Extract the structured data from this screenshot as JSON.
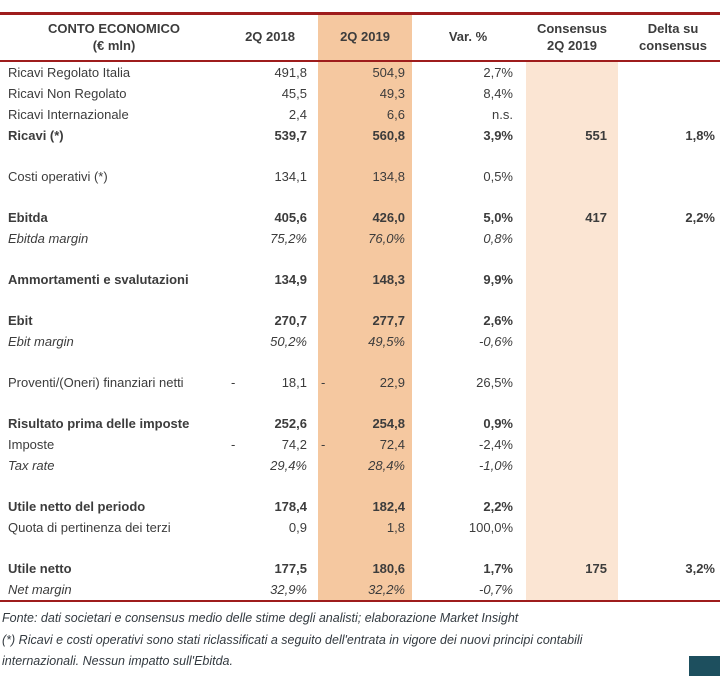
{
  "colors": {
    "line_red": "#9e1c1c",
    "col_2019_bg": "#f5c8a0",
    "col_consensus_bg": "#fbe5d3",
    "text": "#3c3c3c",
    "footer_text": "#333a40",
    "corner_box": "#1d4f5e"
  },
  "table": {
    "negative_sign": "-",
    "header": {
      "label": "CONTO ECONOMICO\n(€ mln)",
      "col_2018": "2Q 2018",
      "col_2019": "2Q 2019",
      "col_var": "Var. %",
      "col_consensus": "Consensus\n2Q 2019",
      "col_delta": "Delta su\nconsensus"
    },
    "rows": [
      {
        "label": "Ricavi Regolato Italia",
        "v2018": "491,8",
        "v2019": "504,9",
        "var": "2,7%"
      },
      {
        "label": "Ricavi Non Regolato",
        "v2018": "45,5",
        "v2019": "49,3",
        "var": "8,4%"
      },
      {
        "label": "Ricavi Internazionale",
        "v2018": "2,4",
        "v2019": "6,6",
        "var": "n.s."
      },
      {
        "label": "Ricavi (*)",
        "style": "bold",
        "v2018": "539,7",
        "v2019": "560,8",
        "var": "3,9%",
        "consensus": "551",
        "delta": "1,8%"
      },
      {
        "spacer": true
      },
      {
        "label": "Costi operativi (*)",
        "v2018": "134,1",
        "v2019": "134,8",
        "var": "0,5%"
      },
      {
        "spacer": true
      },
      {
        "label": "Ebitda",
        "style": "bold",
        "v2018": "405,6",
        "v2019": "426,0",
        "var": "5,0%",
        "consensus": "417",
        "delta": "2,2%"
      },
      {
        "label": "Ebitda margin",
        "style": "italic",
        "v2018": "75,2%",
        "v2019": "76,0%",
        "var": "0,8%"
      },
      {
        "spacer": true
      },
      {
        "label": "Ammortamenti e svalutazioni",
        "style": "bold",
        "v2018": "134,9",
        "v2019": "148,3",
        "var": "9,9%"
      },
      {
        "spacer": true
      },
      {
        "label": "Ebit",
        "style": "bold",
        "v2018": "270,7",
        "v2019": "277,7",
        "var": "2,6%"
      },
      {
        "label": "Ebit margin",
        "style": "italic",
        "v2018": "50,2%",
        "v2019": "49,5%",
        "var": "-0,6%"
      },
      {
        "spacer": true
      },
      {
        "label": "Proventi/(Oneri) finanziari netti",
        "v2018": "18,1",
        "neg2018": true,
        "v2019": "22,9",
        "neg2019": true,
        "var": "26,5%"
      },
      {
        "spacer": true
      },
      {
        "label": "Risultato prima delle imposte",
        "style": "bold",
        "v2018": "252,6",
        "v2019": "254,8",
        "var": "0,9%"
      },
      {
        "label": "Imposte",
        "v2018": "74,2",
        "neg2018": true,
        "v2019": "72,4",
        "neg2019": true,
        "var": "-2,4%"
      },
      {
        "label": "Tax rate",
        "style": "italic",
        "v2018": "29,4%",
        "v2019": "28,4%",
        "var": "-1,0%"
      },
      {
        "spacer": true
      },
      {
        "label": "Utile netto del periodo",
        "style": "bold",
        "v2018": "178,4",
        "v2019": "182,4",
        "var": "2,2%"
      },
      {
        "label": "Quota di pertinenza dei terzi",
        "v2018": "0,9",
        "v2019": "1,8",
        "var": "100,0%"
      },
      {
        "spacer": true
      },
      {
        "label": "Utile netto",
        "style": "bold",
        "v2018": "177,5",
        "v2019": "180,6",
        "var": "1,7%",
        "consensus": "175",
        "delta": "3,2%"
      },
      {
        "label": "Net margin",
        "style": "italic",
        "v2018": "32,9%",
        "v2019": "32,2%",
        "var": "-0,7%"
      }
    ]
  },
  "footer": {
    "source_line": "Fonte: dati societari e consensus medio delle stime degli analisti; elaborazione Market Insight",
    "note_line": "(*) Ricavi e costi operativi sono stati riclassificati a seguito dell'entrata in vigore dei nuovi principi contabili internazionali. Nessun impatto sull'Ebitda."
  }
}
